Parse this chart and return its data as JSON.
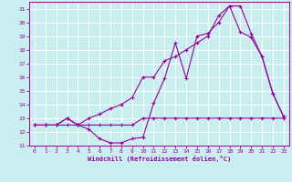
{
  "xlabel": "Windchill (Refroidissement éolien,°C)",
  "background_color": "#c8eef0",
  "line_color": "#990099",
  "spine_color": "#993399",
  "xlim": [
    -0.5,
    23.5
  ],
  "ylim": [
    11.0,
    21.5
  ],
  "yticks": [
    11,
    12,
    13,
    14,
    15,
    16,
    17,
    18,
    19,
    20,
    21
  ],
  "xticks": [
    0,
    1,
    2,
    3,
    4,
    5,
    6,
    7,
    8,
    9,
    10,
    11,
    12,
    13,
    14,
    15,
    16,
    17,
    18,
    19,
    20,
    21,
    22,
    23
  ],
  "line1_x": [
    0,
    1,
    2,
    3,
    4,
    5,
    6,
    7,
    8,
    9,
    10,
    11,
    12,
    13,
    14,
    15,
    16,
    17,
    18,
    19,
    20,
    21,
    22,
    23
  ],
  "line1_y": [
    12.5,
    12.5,
    12.5,
    12.5,
    12.5,
    12.5,
    12.5,
    12.5,
    12.5,
    12.5,
    13.0,
    13.0,
    13.0,
    13.0,
    13.0,
    13.0,
    13.0,
    13.0,
    13.0,
    13.0,
    13.0,
    13.0,
    13.0,
    13.0
  ],
  "line2_x": [
    0,
    1,
    2,
    3,
    4,
    5,
    6,
    7,
    8,
    9,
    10,
    11,
    12,
    13,
    14,
    15,
    16,
    17,
    18,
    19,
    20,
    21,
    22,
    23
  ],
  "line2_y": [
    12.5,
    12.5,
    12.5,
    13.0,
    12.5,
    12.2,
    11.5,
    11.2,
    11.2,
    11.5,
    11.6,
    14.1,
    15.9,
    18.5,
    15.9,
    19.0,
    19.2,
    20.0,
    21.2,
    21.2,
    19.2,
    17.5,
    14.8,
    13.1
  ],
  "line3_x": [
    0,
    1,
    2,
    3,
    4,
    5,
    6,
    7,
    8,
    9,
    10,
    11,
    12,
    13,
    14,
    15,
    16,
    17,
    18,
    19,
    20,
    21,
    22,
    23
  ],
  "line3_y": [
    12.5,
    12.5,
    12.5,
    13.0,
    12.5,
    13.0,
    13.3,
    13.7,
    14.0,
    14.5,
    16.0,
    16.0,
    17.2,
    17.5,
    18.0,
    18.5,
    19.0,
    20.5,
    21.2,
    19.3,
    18.9,
    17.5,
    14.8,
    13.1
  ]
}
